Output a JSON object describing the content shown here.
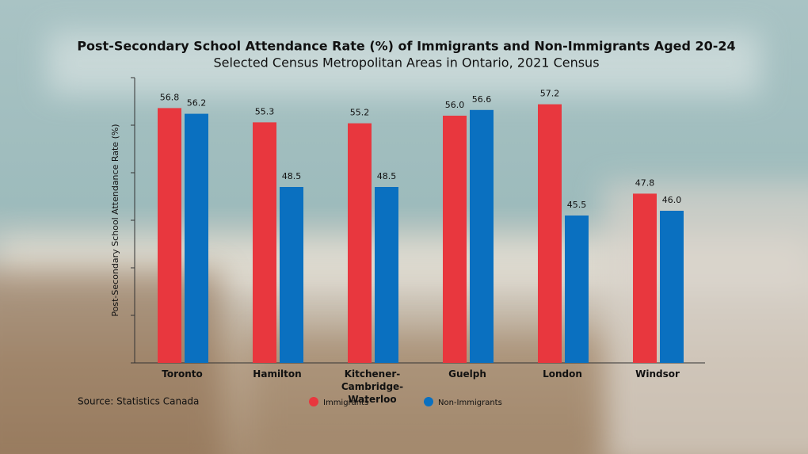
{
  "chart_data": {
    "type": "bar",
    "title": "Post-Secondary School Attendance Rate (%) of Immigrants and Non-Immigrants Aged 20-24",
    "subtitle": "Selected Census Metropolitan Areas in Ontario, 2021 Census",
    "y_label": "Post-Secondary School Attendance Rate (%)",
    "source": "Source: Statistics Canada",
    "categories": [
      "Toronto",
      "Hamilton",
      "Kitchener-Cambridge-Waterloo",
      "Guelph",
      "London",
      "Windsor"
    ],
    "series": [
      {
        "name": "Immigrants",
        "color": "#e8373e",
        "values": [
          56.8,
          55.3,
          55.2,
          56.0,
          57.2,
          47.8
        ],
        "value_labels": [
          "56.8",
          "55.3",
          "55.2",
          "56.0",
          "57.2",
          "47.8"
        ]
      },
      {
        "name": "Non-Immigrants",
        "color": "#0a70c0",
        "values": [
          56.2,
          48.5,
          48.5,
          56.6,
          45.5,
          46.0
        ],
        "value_labels": [
          "56.2",
          "48.5",
          "48.5",
          "56.6",
          "45.5",
          "46.0"
        ]
      }
    ],
    "ylim": [
      30,
      60
    ],
    "yticks": [
      30,
      35,
      40,
      45,
      50,
      55,
      60
    ],
    "legend": "bottom"
  }
}
